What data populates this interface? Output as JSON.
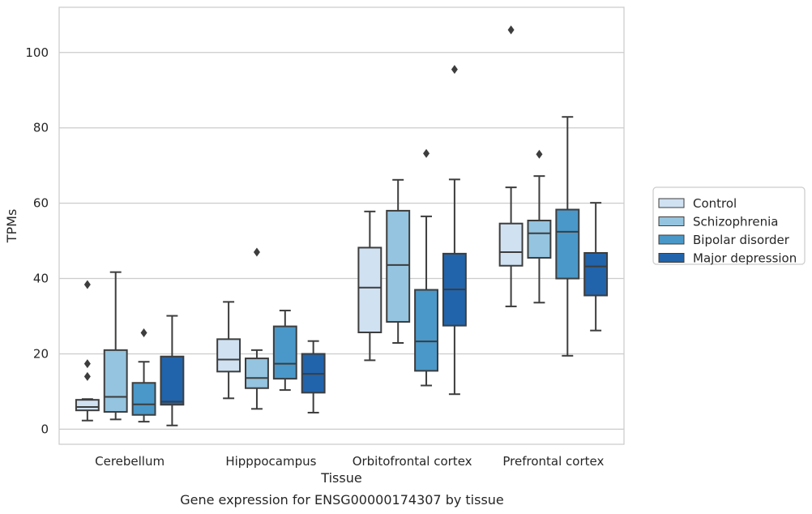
{
  "chart_data": {
    "type": "boxplot",
    "title": "Gene expression for ENSG00000174307 by tissue",
    "xlabel": "Tissue",
    "ylabel": "TPMs",
    "ylim": [
      -4,
      112
    ],
    "yticks": [
      0,
      20,
      40,
      60,
      80,
      100
    ],
    "ytick_labels": [
      "0",
      "20",
      "40",
      "60",
      "80",
      "100"
    ],
    "grid": "horizontal",
    "legend_position": "right-outside",
    "categories": [
      "Cerebellum",
      "Hipppocampus",
      "Orbitofrontal cortex",
      "Prefrontal cortex"
    ],
    "series": [
      {
        "name": "Control",
        "color": "#d0e1f2",
        "boxes": [
          {
            "whisker_low": 2.3,
            "q1": 5.0,
            "median": 5.9,
            "q3": 7.8,
            "whisker_high": 8.0,
            "outliers": [
              14.0,
              17.4,
              38.4
            ]
          },
          {
            "whisker_low": 8.2,
            "q1": 15.3,
            "median": 18.5,
            "q3": 23.9,
            "whisker_high": 33.8,
            "outliers": []
          },
          {
            "whisker_low": 18.3,
            "q1": 25.7,
            "median": 37.6,
            "q3": 48.2,
            "whisker_high": 57.8,
            "outliers": []
          },
          {
            "whisker_low": 32.6,
            "q1": 43.4,
            "median": 47.0,
            "q3": 54.6,
            "whisker_high": 64.2,
            "outliers": [
              106.0
            ]
          }
        ]
      },
      {
        "name": "Schizophrenia",
        "color": "#94c4df",
        "boxes": [
          {
            "whisker_low": 2.6,
            "q1": 4.6,
            "median": 8.6,
            "q3": 21.0,
            "whisker_high": 41.7,
            "outliers": []
          },
          {
            "whisker_low": 5.4,
            "q1": 10.9,
            "median": 13.6,
            "q3": 18.8,
            "whisker_high": 21.0,
            "outliers": [
              47.0
            ]
          },
          {
            "whisker_low": 22.9,
            "q1": 28.5,
            "median": 43.6,
            "q3": 58.0,
            "whisker_high": 66.2,
            "outliers": []
          },
          {
            "whisker_low": 33.6,
            "q1": 45.5,
            "median": 52.0,
            "q3": 55.4,
            "whisker_high": 67.2,
            "outliers": [
              73.0
            ]
          }
        ]
      },
      {
        "name": "Bipolar disorder",
        "color": "#4a98c9",
        "boxes": [
          {
            "whisker_low": 2.0,
            "q1": 3.8,
            "median": 6.6,
            "q3": 12.3,
            "whisker_high": 17.9,
            "outliers": [
              25.6
            ]
          },
          {
            "whisker_low": 10.4,
            "q1": 13.4,
            "median": 17.4,
            "q3": 27.3,
            "whisker_high": 31.5,
            "outliers": []
          },
          {
            "whisker_low": 11.6,
            "q1": 15.5,
            "median": 23.3,
            "q3": 37.0,
            "whisker_high": 56.5,
            "outliers": [
              73.2
            ]
          },
          {
            "whisker_low": 19.5,
            "q1": 40.0,
            "median": 52.4,
            "q3": 58.3,
            "whisker_high": 82.9,
            "outliers": []
          }
        ]
      },
      {
        "name": "Major depression",
        "color": "#2164ab",
        "boxes": [
          {
            "whisker_low": 1.0,
            "q1": 6.5,
            "median": 7.3,
            "q3": 19.3,
            "whisker_high": 30.1,
            "outliers": []
          },
          {
            "whisker_low": 4.4,
            "q1": 9.7,
            "median": 14.7,
            "q3": 20.0,
            "whisker_high": 23.4,
            "outliers": []
          },
          {
            "whisker_low": 9.3,
            "q1": 27.5,
            "median": 37.1,
            "q3": 46.6,
            "whisker_high": 66.3,
            "outliers": [
              95.5
            ]
          },
          {
            "whisker_low": 26.2,
            "q1": 35.5,
            "median": 43.2,
            "q3": 46.8,
            "whisker_high": 60.1,
            "outliers": []
          }
        ]
      }
    ]
  }
}
